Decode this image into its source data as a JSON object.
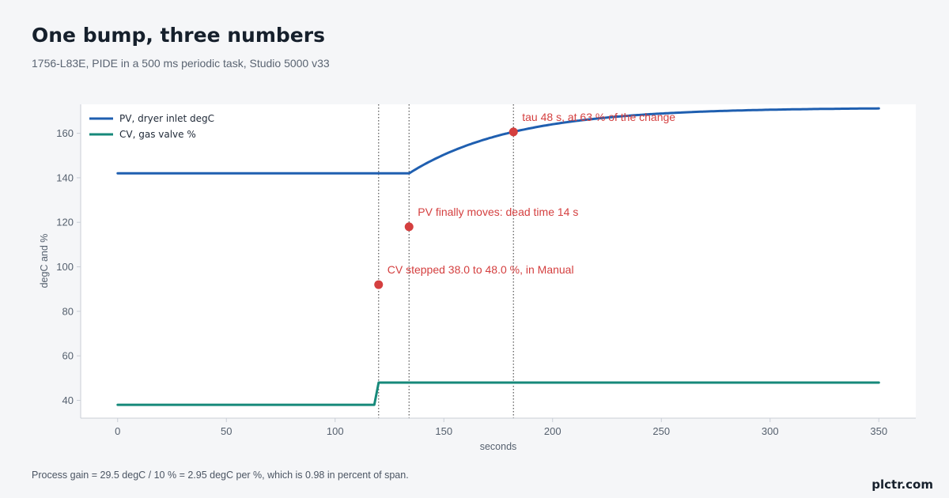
{
  "header": {
    "title": "One bump, three numbers",
    "subtitle": "1756-L83E, PIDE in a 500 ms periodic task, Studio 5000 v33"
  },
  "footer": {
    "note": "Process gain = 29.5 degC / 10 % = 2.95 degC per %, which is 0.98 in percent of span.",
    "brand": "plctr.com"
  },
  "colors": {
    "pv": "#1f5fb0",
    "cv": "#16897a",
    "annotation": "#d43f3f",
    "vline": "#555555"
  },
  "chart_data": {
    "type": "line",
    "xlabel": "seconds",
    "ylabel": "degC and %",
    "xlim": [
      -17,
      367
    ],
    "ylim": [
      32,
      173
    ],
    "xticks": [
      0,
      50,
      100,
      150,
      200,
      250,
      300,
      350
    ],
    "yticks": [
      40,
      60,
      80,
      100,
      120,
      140,
      160
    ],
    "grid": false,
    "legend": "top-left",
    "series": [
      {
        "name": "PV, dryer inlet degC",
        "color": "#1f5fb0",
        "model": "first-order",
        "points": [
          [
            0,
            142.0
          ],
          [
            134,
            142.0
          ],
          [
            350,
            171.5
          ]
        ],
        "tau": 48
      },
      {
        "name": "CV, gas valve %",
        "color": "#16897a",
        "points": [
          [
            0,
            38.0
          ],
          [
            118,
            38.0
          ],
          [
            120,
            48.0
          ],
          [
            350,
            48.0
          ]
        ]
      }
    ],
    "vlines": [
      120,
      134,
      182
    ],
    "annotations": [
      {
        "x": 120,
        "y": 92,
        "text": "CV stepped 38.0 to 48.0 %, in Manual"
      },
      {
        "x": 134,
        "y": 118,
        "text": "PV finally moves: dead time 14 s"
      },
      {
        "x": 182,
        "y": 160.6,
        "text": "tau 48 s, at 63 % of the change"
      }
    ]
  }
}
